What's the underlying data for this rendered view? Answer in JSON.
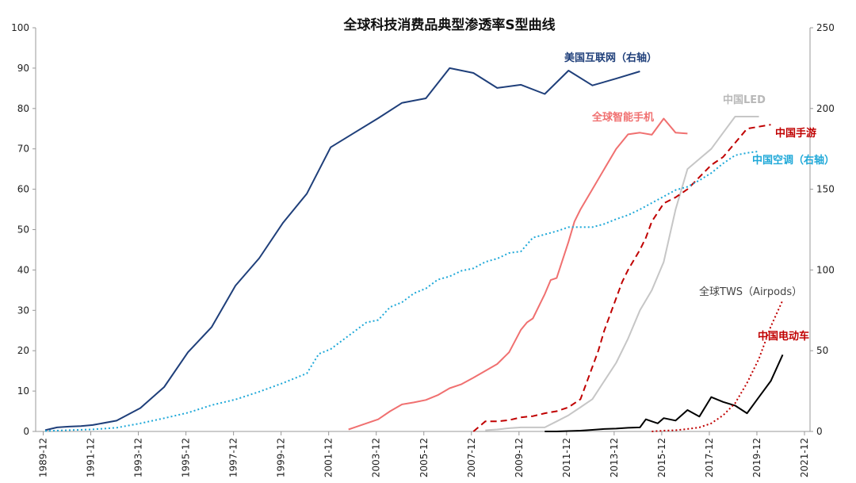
{
  "chart_data": {
    "type": "line",
    "title": "全球科技消费品典型渗透率S型曲线",
    "xlabel": "",
    "ylabel": "",
    "ylim_left": [
      0,
      100
    ],
    "ylim_right": [
      0,
      250
    ],
    "yticks_left": [
      "0",
      "10",
      "20",
      "30",
      "40",
      "50",
      "60",
      "70",
      "80",
      "90",
      "100"
    ],
    "yticks_right": [
      "0",
      "50",
      "100",
      "150",
      "200",
      "250"
    ],
    "xticks": [
      "1989-12",
      "1991-12",
      "1993-12",
      "1995-12",
      "1997-12",
      "1999-12",
      "2001-12",
      "2003-12",
      "2005-12",
      "2007-12",
      "2009-12",
      "2011-12",
      "2013-12",
      "2015-12",
      "2017-12",
      "2019-12",
      "2021-12"
    ],
    "grid": false,
    "series": [
      {
        "name": "美国互联网（右轴）",
        "color": "#1f3f7a",
        "style": "solid",
        "axis": "right",
        "x": [
          1990.0,
          1990.5,
          1991.0,
          1991.5,
          1992.0,
          1993.0,
          1994.0,
          1995.0,
          1996.0,
          1997.0,
          1998.0,
          1999.0,
          2000.0,
          2001.0,
          2002.0,
          2003.0,
          2004.0,
          2005.0,
          2006.0,
          2007.0,
          2008.0,
          2009.0,
          2010.0,
          2011.0,
          2012.0,
          2013.0,
          2014.0,
          2015.0
        ],
        "y": [
          0.8,
          2.5,
          3.0,
          3.3,
          4.0,
          6.7,
          14.5,
          27.5,
          49.0,
          64.7,
          90.3,
          107.3,
          129.3,
          147.3,
          176.0,
          185.0,
          194.0,
          203.5,
          206.3,
          225.0,
          222.0,
          212.7,
          214.7,
          209.0,
          223.5,
          214.3,
          218.5,
          223.0
        ]
      },
      {
        "name": "全球智能手机",
        "color": "#f07070",
        "style": "solid",
        "axis": "left",
        "x": [
          2002.75,
          2003.0,
          2003.5,
          2004.0,
          2004.5,
          2005.0,
          2005.5,
          2006.0,
          2006.5,
          2007.0,
          2007.5,
          2008.0,
          2008.5,
          2009.0,
          2009.5,
          2010.0,
          2010.25,
          2010.5,
          2011.0,
          2011.25,
          2011.5,
          2012.0,
          2012.25,
          2012.5,
          2013.0,
          2013.5,
          2014.0,
          2014.5,
          2015.0,
          2015.5,
          2016.0,
          2016.5,
          2017.0
        ],
        "y": [
          0.5,
          1.0,
          2.0,
          3.0,
          5.0,
          6.7,
          7.2,
          7.8,
          9.0,
          10.7,
          11.7,
          13.3,
          15.0,
          16.7,
          19.6,
          25.2,
          27.0,
          28.0,
          34.0,
          37.5,
          38.0,
          47.0,
          52.0,
          55.0,
          60.0,
          65.0,
          70.0,
          73.6,
          74.0,
          73.5,
          77.5,
          74.0,
          73.8
        ]
      },
      {
        "name": "中国LED",
        "color": "#c6c6c6",
        "style": "solid",
        "axis": "left",
        "x": [
          2008.5,
          2009.0,
          2009.5,
          2010.0,
          2010.5,
          2011.0,
          2011.5,
          2012.0,
          2012.5,
          2013.0,
          2013.5,
          2014.0,
          2014.5,
          2015.0,
          2015.5,
          2016.0,
          2016.5,
          2017.0,
          2017.5,
          2018.0,
          2018.5,
          2019.0,
          2019.5,
          2020.0
        ],
        "y": [
          0.3,
          0.5,
          0.8,
          1.0,
          1.0,
          1.0,
          2.5,
          4.0,
          6.0,
          8.0,
          12.5,
          17.0,
          23.0,
          30.0,
          35.0,
          42.0,
          55.0,
          65.0,
          67.5,
          70.0,
          74.0,
          78.0,
          78.0,
          78.0
        ]
      },
      {
        "name": "中国手游",
        "color": "#c00000",
        "style": "dashed",
        "axis": "left",
        "x": [
          2008.0,
          2008.5,
          2009.0,
          2009.5,
          2010.0,
          2010.5,
          2011.0,
          2011.5,
          2012.0,
          2012.5,
          2013.0,
          2013.25,
          2013.5,
          2014.0,
          2014.25,
          2014.5,
          2015.0,
          2015.25,
          2015.5,
          2016.0,
          2016.5,
          2017.0,
          2017.5,
          2018.0,
          2018.5,
          2019.0,
          2019.5,
          2020.0,
          2020.5
        ],
        "y": [
          0.0,
          2.5,
          2.5,
          2.8,
          3.5,
          3.8,
          4.5,
          5.0,
          6.0,
          8.0,
          16.0,
          20.0,
          25.0,
          33.0,
          37.0,
          40.0,
          45.0,
          48.0,
          52.0,
          56.5,
          58.0,
          60.0,
          63.0,
          66.0,
          68.0,
          71.5,
          75.0,
          75.5,
          76.0
        ]
      },
      {
        "name": "中国空调（右轴）",
        "color": "#1ea8d8",
        "style": "dotted",
        "axis": "right",
        "x": [
          1990.0,
          1991.0,
          1992.0,
          1993.0,
          1994.0,
          1995.0,
          1996.0,
          1997.0,
          1998.0,
          1999.0,
          2000.0,
          2001.0,
          2001.5,
          2002.0,
          2003.0,
          2003.5,
          2004.0,
          2004.5,
          2005.0,
          2005.5,
          2006.0,
          2006.5,
          2007.0,
          2007.5,
          2008.0,
          2008.5,
          2009.0,
          2009.5,
          2010.0,
          2010.5,
          2011.0,
          2011.5,
          2012.0,
          2012.5,
          2013.0,
          2013.5,
          2014.0,
          2014.5,
          2015.0,
          2015.5,
          2016.0,
          2016.5,
          2017.0,
          2017.5,
          2018.0,
          2018.5,
          2019.0,
          2019.5,
          2020.0
        ],
        "y": [
          0.3,
          0.8,
          1.3,
          2.3,
          5.0,
          8.2,
          11.6,
          16.3,
          19.8,
          24.6,
          30.0,
          36.0,
          48.0,
          51.0,
          62.0,
          67.5,
          69.0,
          77.0,
          80.0,
          85.5,
          88.5,
          94.0,
          96.0,
          99.5,
          101.0,
          105.0,
          107.0,
          110.5,
          111.5,
          120.0,
          122.0,
          124.0,
          126.5,
          126.5,
          126.5,
          128.5,
          131.5,
          134.0,
          137.5,
          141.5,
          145.5,
          149.5,
          151.5,
          155.5,
          160.0,
          166.0,
          171.0,
          172.5,
          173.5
        ]
      },
      {
        "name": "全球TWS（Airpods）",
        "color": "#000000",
        "style": "solid",
        "axis": "left",
        "x": [
          2011.0,
          2011.5,
          2012.0,
          2012.5,
          2013.0,
          2013.5,
          2014.0,
          2014.5,
          2015.0,
          2015.25,
          2015.5,
          2015.75,
          2016.0,
          2016.5,
          2017.0,
          2017.5,
          2018.0,
          2018.5,
          2019.0,
          2019.5,
          2020.0,
          2020.5,
          2021.0
        ],
        "y": [
          0.0,
          0.0,
          0.1,
          0.2,
          0.4,
          0.6,
          0.7,
          0.9,
          1.0,
          3.0,
          2.5,
          2.0,
          3.3,
          2.7,
          5.3,
          3.7,
          8.5,
          7.3,
          6.4,
          4.5,
          8.5,
          12.5,
          19.0
        ]
      },
      {
        "name": "中国电动车",
        "color": "#c00000",
        "style": "dotted",
        "axis": "left",
        "x": [
          2015.5,
          2016.0,
          2016.5,
          2017.0,
          2017.5,
          2018.0,
          2018.5,
          2019.0,
          2019.5,
          2020.0,
          2020.5,
          2021.0
        ],
        "y": [
          0.0,
          0.2,
          0.3,
          0.6,
          1.0,
          2.0,
          4.0,
          7.0,
          12.0,
          18.0,
          26.0,
          32.5
        ]
      }
    ],
    "annotations": {
      "us_internet": "美国互联网（右轴）",
      "global_smartphone": "全球智能手机",
      "china_led": "中国LED",
      "china_mobile_games": "中国手游",
      "china_ac": "中国空调（右轴）",
      "global_tws": "全球TWS（Airpods）",
      "china_ev": "中国电动车"
    }
  }
}
